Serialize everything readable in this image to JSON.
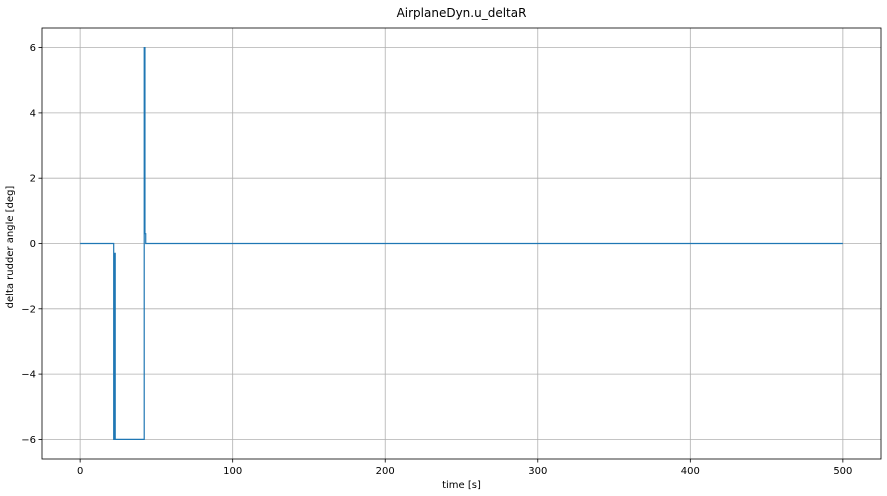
{
  "chart_data": {
    "type": "line",
    "title": "AirplaneDyn.u_deltaR",
    "xlabel": "time [s]",
    "ylabel": "delta rudder angle [deg]",
    "xlim": [
      -25,
      525
    ],
    "ylim": [
      -6.6,
      6.6
    ],
    "xticks": [
      0,
      100,
      200,
      300,
      400,
      500
    ],
    "yticks": [
      -6,
      -4,
      -2,
      0,
      2,
      4,
      6
    ],
    "xtick_labels": [
      "0",
      "100",
      "200",
      "300",
      "400",
      "500"
    ],
    "ytick_labels": [
      "−6",
      "−4",
      "−2",
      "0",
      "2",
      "4",
      "6"
    ],
    "grid": true,
    "color": "#1f77b4",
    "series": [
      {
        "x": [
          0,
          22,
          22,
          22.5,
          22.5,
          23,
          23,
          42,
          42,
          42.5,
          42.5,
          43,
          43,
          500
        ],
        "y": [
          0,
          0,
          -6,
          -6,
          -0.3,
          -0.3,
          -6,
          -6,
          6,
          6,
          0.3,
          0.3,
          0,
          0
        ]
      }
    ]
  }
}
